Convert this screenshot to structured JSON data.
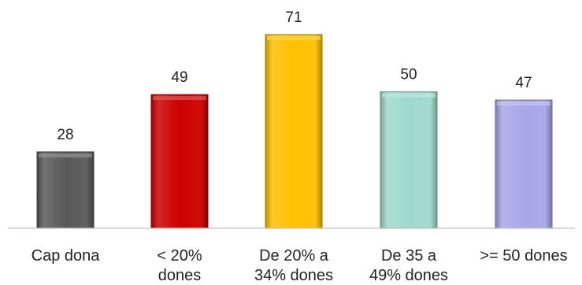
{
  "chart_data": {
    "type": "bar",
    "categories": [
      [
        "Cap dona"
      ],
      [
        "< 20%",
        "dones"
      ],
      [
        "De 20% a",
        "34% dones"
      ],
      [
        "De 35 a",
        "49% dones"
      ],
      [
        ">= 50 dones"
      ]
    ],
    "values": [
      28,
      49,
      71,
      50,
      47
    ],
    "data_labels": [
      "28",
      "49",
      "71",
      "50",
      "47"
    ],
    "colors": [
      "#595959",
      "#cc0000",
      "#ffc000",
      "#9ed8cc",
      "#a7a6e8"
    ],
    "ylim": [
      0,
      75
    ],
    "grid": false,
    "legend": "none"
  }
}
